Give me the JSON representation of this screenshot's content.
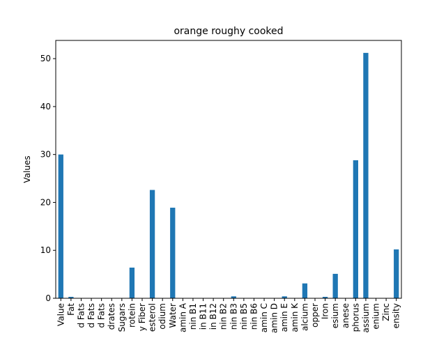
{
  "chart_data": {
    "type": "bar",
    "title": "orange roughy cooked",
    "xlabel": "",
    "ylabel": "Values",
    "ylim": [
      0,
      53.8
    ],
    "yticks": [
      0,
      10,
      20,
      30,
      40,
      50
    ],
    "grid": false,
    "legend": "none",
    "bar_color": "#1f77b4",
    "categories": [
      "Value",
      "Fat",
      "d Fats",
      "d Fats",
      "d Fats",
      "drates",
      "Sugars",
      "rotein",
      "y Fiber",
      "esterol",
      "odium",
      "Water",
      "amin A",
      "nin B1",
      "in B11",
      "in B12",
      "nin B2",
      "nin B3",
      "nin B5",
      "nin B6",
      "amin C",
      "amin D",
      "amin E",
      "amin K",
      "alcium",
      "opper",
      "Iron",
      "esium",
      "anese",
      "phorus",
      "assium",
      "enium",
      "Zinc",
      "ensity"
    ],
    "values": [
      30.0,
      0.3,
      0,
      0,
      0,
      0,
      0,
      6.4,
      0,
      22.6,
      0,
      18.9,
      0,
      0,
      0,
      0,
      0,
      0.4,
      0,
      0,
      0,
      0,
      0.4,
      0,
      3.1,
      0,
      0.3,
      5.1,
      0,
      28.8,
      51.2,
      0,
      0,
      10.2
    ]
  }
}
